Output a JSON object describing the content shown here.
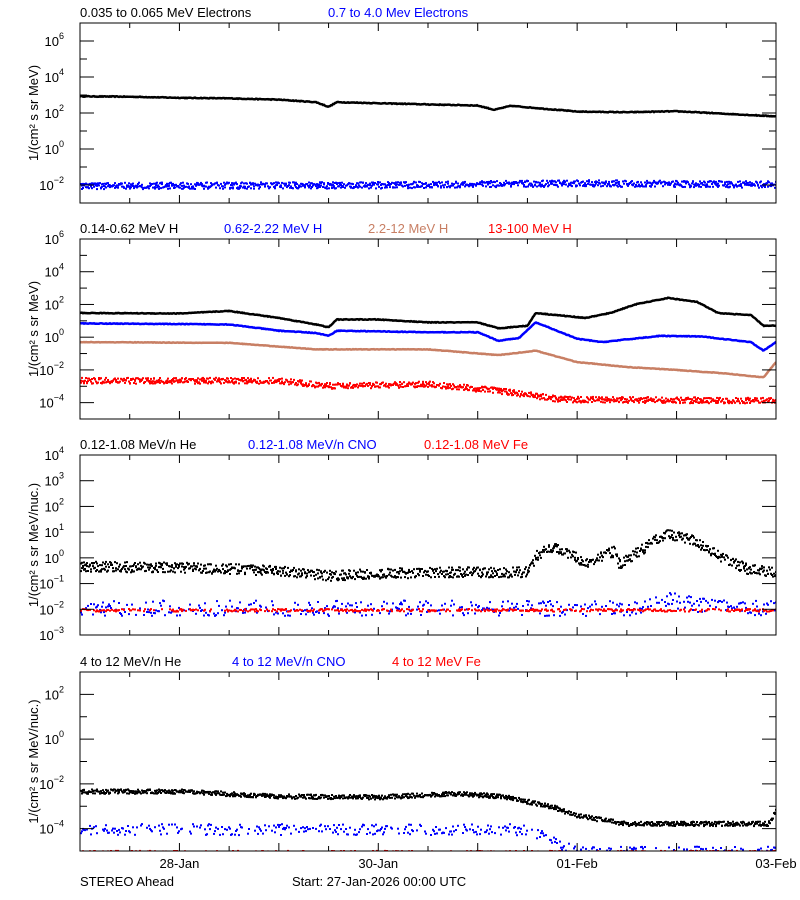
{
  "footer": {
    "spacecraft": "STEREO Ahead",
    "start": "Start: 27-Jan-2026 00:00 UTC"
  },
  "chart_data": [
    {
      "type": "scatter",
      "titles": [
        {
          "text": "0.035 to 0.065 MeV Electrons",
          "color": "#000000"
        },
        {
          "text": "0.7 to 4.0 Mev Electrons",
          "color": "#0000ff"
        }
      ],
      "ylabel": "1/(cm² s sr MeV)",
      "yscale": "log",
      "ylim": [
        0.001,
        10000000.0
      ],
      "ytick_exponents": [
        -2,
        0,
        2,
        4,
        6
      ],
      "xlim": [
        "2026-01-27T00:00",
        "2026-02-03T00:00"
      ],
      "series": [
        {
          "name": "0.035 to 0.065 MeV Electrons",
          "color": "#000000",
          "points": [
            [
              "2026-01-27T00:00",
              850
            ],
            [
              "2026-01-27T12:00",
              800
            ],
            [
              "2026-01-28T00:00",
              700
            ],
            [
              "2026-01-28T12:00",
              650
            ],
            [
              "2026-01-29T00:00",
              550
            ],
            [
              "2026-01-29T09:00",
              400
            ],
            [
              "2026-01-29T12:00",
              220
            ],
            [
              "2026-01-29T14:00",
              400
            ],
            [
              "2026-01-30T00:00",
              350
            ],
            [
              "2026-01-30T12:00",
              300
            ],
            [
              "2026-01-31T00:00",
              260
            ],
            [
              "2026-01-31T04:00",
              150
            ],
            [
              "2026-01-31T08:00",
              250
            ],
            [
              "2026-02-01T00:00",
              120
            ],
            [
              "2026-02-01T12:00",
              110
            ],
            [
              "2026-02-02T00:00",
              125
            ],
            [
              "2026-02-02T12:00",
              90
            ],
            [
              "2026-02-03T00:00",
              65
            ]
          ]
        },
        {
          "name": "0.7 to 4.0 Mev Electrons",
          "color": "#0000ff",
          "points": [
            [
              "2026-01-27T00:00",
              0.01
            ],
            [
              "2026-01-30T00:00",
              0.011
            ],
            [
              "2026-02-01T00:00",
              0.014
            ],
            [
              "2026-02-03T00:00",
              0.012
            ]
          ]
        }
      ]
    },
    {
      "type": "scatter",
      "titles": [
        {
          "text": "0.14-0.62 MeV H",
          "color": "#000000"
        },
        {
          "text": "0.62-2.22 MeV H",
          "color": "#0000ff"
        },
        {
          "text": "2.2-12 MeV H",
          "color": "#c87f64"
        },
        {
          "text": "13-100 MeV H",
          "color": "#ff0000"
        }
      ],
      "ylabel": "1/(cm² s sr MeV)",
      "yscale": "log",
      "ylim": [
        1e-05,
        1000000.0
      ],
      "ytick_exponents": [
        -4,
        -2,
        0,
        2,
        4,
        6
      ],
      "xlim": [
        "2026-01-27T00:00",
        "2026-02-03T00:00"
      ],
      "series": [
        {
          "name": "0.14-0.62 MeV H",
          "color": "#000000",
          "points": [
            [
              "2026-01-27T00:00",
              30
            ],
            [
              "2026-01-28T00:00",
              28
            ],
            [
              "2026-01-28T12:00",
              40
            ],
            [
              "2026-01-29T00:00",
              15
            ],
            [
              "2026-01-29T09:00",
              6
            ],
            [
              "2026-01-29T12:00",
              4
            ],
            [
              "2026-01-29T14:00",
              12
            ],
            [
              "2026-01-30T00:00",
              12
            ],
            [
              "2026-01-30T12:00",
              8
            ],
            [
              "2026-01-31T00:00",
              8
            ],
            [
              "2026-01-31T05:00",
              3.5
            ],
            [
              "2026-01-31T12:00",
              5
            ],
            [
              "2026-01-31T14:00",
              30
            ],
            [
              "2026-02-01T02:00",
              15
            ],
            [
              "2026-02-01T08:00",
              30
            ],
            [
              "2026-02-01T14:00",
              100
            ],
            [
              "2026-02-01T22:00",
              250
            ],
            [
              "2026-02-02T05:00",
              140
            ],
            [
              "2026-02-02T10:00",
              30
            ],
            [
              "2026-02-02T18:00",
              22
            ],
            [
              "2026-02-02T21:00",
              5
            ],
            [
              "2026-02-03T00:00",
              5
            ]
          ]
        },
        {
          "name": "0.62-2.22 MeV H",
          "color": "#0000ff",
          "points": [
            [
              "2026-01-27T00:00",
              7
            ],
            [
              "2026-01-28T12:00",
              6
            ],
            [
              "2026-01-29T00:00",
              2.5
            ],
            [
              "2026-01-29T09:00",
              1.8
            ],
            [
              "2026-01-29T12:00",
              1.2
            ],
            [
              "2026-01-29T14:00",
              2.5
            ],
            [
              "2026-01-30T12:00",
              2
            ],
            [
              "2026-01-31T00:00",
              2
            ],
            [
              "2026-01-31T05:00",
              0.6
            ],
            [
              "2026-01-31T10:00",
              0.9
            ],
            [
              "2026-01-31T14:00",
              8
            ],
            [
              "2026-02-01T00:00",
              0.8
            ],
            [
              "2026-02-01T06:00",
              0.5
            ],
            [
              "2026-02-01T20:00",
              1.2
            ],
            [
              "2026-02-02T06:00",
              1.1
            ],
            [
              "2026-02-02T18:00",
              0.5
            ],
            [
              "2026-02-02T21:00",
              0.15
            ],
            [
              "2026-02-03T00:00",
              0.5
            ]
          ]
        },
        {
          "name": "2.2-12 MeV H",
          "color": "#c87f64",
          "points": [
            [
              "2026-01-27T00:00",
              0.5
            ],
            [
              "2026-01-28T12:00",
              0.45
            ],
            [
              "2026-01-29T09:00",
              0.18
            ],
            [
              "2026-01-30T12:00",
              0.18
            ],
            [
              "2026-01-31T05:00",
              0.08
            ],
            [
              "2026-01-31T14:00",
              0.15
            ],
            [
              "2026-02-01T00:00",
              0.03
            ],
            [
              "2026-02-01T12:00",
              0.015
            ],
            [
              "2026-02-02T00:00",
              0.01
            ],
            [
              "2026-02-02T12:00",
              0.006
            ],
            [
              "2026-02-02T21:00",
              0.0035
            ],
            [
              "2026-02-03T00:00",
              0.03
            ]
          ]
        },
        {
          "name": "13-100 MeV H",
          "color": "#ff0000",
          "points": [
            [
              "2026-01-27T00:00",
              0.0025
            ],
            [
              "2026-01-29T00:00",
              0.0025
            ],
            [
              "2026-01-29T12:00",
              0.0012
            ],
            [
              "2026-01-30T12:00",
              0.0015
            ],
            [
              "2026-01-31T05:00",
              0.0006
            ],
            [
              "2026-01-31T20:00",
              0.00018
            ],
            [
              "2026-02-03T00:00",
              0.00015
            ]
          ]
        }
      ]
    },
    {
      "type": "scatter",
      "titles": [
        {
          "text": "0.12-1.08 MeV/n He",
          "color": "#000000"
        },
        {
          "text": "0.12-1.08 MeV/n CNO",
          "color": "#0000ff"
        },
        {
          "text": "0.12-1.08 MeV Fe",
          "color": "#ff0000"
        }
      ],
      "ylabel": "1/(cm² s sr MeV/nuc.)",
      "yscale": "log",
      "ylim": [
        0.001,
        10000.0
      ],
      "ytick_exponents": [
        -3,
        -2,
        -1,
        0,
        1,
        2,
        3,
        4
      ],
      "xlim": [
        "2026-01-27T00:00",
        "2026-02-03T00:00"
      ],
      "series": [
        {
          "name": "0.12-1.08 MeV/n He",
          "color": "#000000",
          "points": [
            [
              "2026-01-27T00:00",
              0.5
            ],
            [
              "2026-01-28T00:00",
              0.45
            ],
            [
              "2026-01-29T00:00",
              0.35
            ],
            [
              "2026-01-29T12:00",
              0.22
            ],
            [
              "2026-01-30T12:00",
              0.3
            ],
            [
              "2026-01-31T00:00",
              0.3
            ],
            [
              "2026-01-31T12:00",
              0.3
            ],
            [
              "2026-01-31T14:00",
              1.3
            ],
            [
              "2026-01-31T18:00",
              3
            ],
            [
              "2026-02-01T02:00",
              0.7
            ],
            [
              "2026-02-01T09:00",
              2
            ],
            [
              "2026-02-01T10:00",
              0.6
            ],
            [
              "2026-02-01T21:00",
              9
            ],
            [
              "2026-02-02T04:00",
              5
            ],
            [
              "2026-02-02T11:00",
              1
            ],
            [
              "2026-02-02T17:00",
              0.4
            ],
            [
              "2026-02-03T00:00",
              0.3
            ]
          ]
        },
        {
          "name": "0.12-1.08 MeV/n CNO",
          "color": "#0000ff",
          "points": [
            [
              "2026-01-27T00:00",
              0.012
            ],
            [
              "2026-02-01T12:00",
              0.012
            ],
            [
              "2026-02-01T22:00",
              0.025
            ],
            [
              "2026-02-02T06:00",
              0.015
            ],
            [
              "2026-02-03T00:00",
              0.011
            ]
          ]
        },
        {
          "name": "0.12-1.08 MeV Fe",
          "color": "#ff0000",
          "points": [
            [
              "2026-01-27T00:00",
              0.01
            ],
            [
              "2026-02-03T00:00",
              0.01
            ]
          ]
        }
      ]
    },
    {
      "type": "scatter",
      "titles": [
        {
          "text": "4 to 12 MeV/n He",
          "color": "#000000"
        },
        {
          "text": "4 to 12 MeV/n CNO",
          "color": "#0000ff"
        },
        {
          "text": "4 to 12 MeV Fe",
          "color": "#ff0000"
        }
      ],
      "ylabel": "1/(cm² s sr MeV/nuc.)",
      "yscale": "log",
      "ylim": [
        1e-05,
        1000.0
      ],
      "ytick_exponents": [
        -4,
        -2,
        0,
        2
      ],
      "xlim": [
        "2026-01-27T00:00",
        "2026-02-03T00:00"
      ],
      "xticks": [
        {
          "t": "2026-01-28T00:00",
          "label": "28-Jan"
        },
        {
          "t": "2026-01-30T00:00",
          "label": "30-Jan"
        },
        {
          "t": "2026-02-01T00:00",
          "label": "01-Feb"
        },
        {
          "t": "2026-02-03T00:00",
          "label": "03-Feb"
        }
      ],
      "series": [
        {
          "name": "4 to 12 MeV/n He",
          "color": "#000000",
          "points": [
            [
              "2026-01-27T00:00",
              0.005
            ],
            [
              "2026-01-28T00:00",
              0.005
            ],
            [
              "2026-01-29T00:00",
              0.003
            ],
            [
              "2026-01-30T00:00",
              0.0028
            ],
            [
              "2026-01-30T18:00",
              0.004
            ],
            [
              "2026-01-31T06:00",
              0.003
            ],
            [
              "2026-01-31T18:00",
              0.001
            ],
            [
              "2026-02-01T00:00",
              0.0004
            ],
            [
              "2026-02-01T12:00",
              0.00018
            ],
            [
              "2026-02-02T22:00",
              0.00018
            ],
            [
              "2026-02-03T00:00",
              0.0008
            ]
          ]
        },
        {
          "name": "4 to 12 MeV/n CNO",
          "color": "#0000ff",
          "points": [
            [
              "2026-01-27T00:00",
              0.0001
            ],
            [
              "2026-01-31T12:00",
              0.0001
            ],
            [
              "2026-02-01T00:00",
              1e-05
            ],
            [
              "2026-02-03T00:00",
              1e-05
            ]
          ]
        },
        {
          "name": "4 to 12 MeV Fe",
          "color": "#ff0000",
          "points": [
            [
              "2026-01-27T00:00",
              1e-05
            ],
            [
              "2026-02-03T00:00",
              1e-05
            ]
          ]
        }
      ]
    }
  ]
}
